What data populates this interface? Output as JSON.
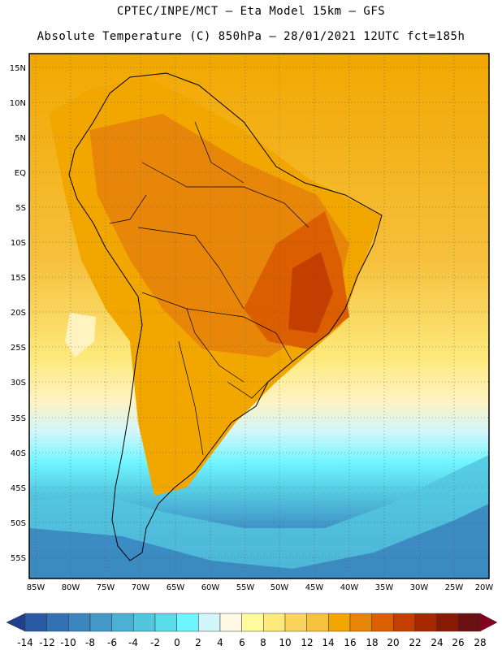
{
  "header": {
    "line1": "CPTEC/INPE/MCT –   Eta Model 15km – GFS",
    "line2": "Absolute Temperature (C) 850hPa – 28/01/2021 12UTC fct=185h"
  },
  "map": {
    "lat_labels": [
      "15N",
      "10N",
      "5N",
      "EQ",
      "5S",
      "10S",
      "15S",
      "20S",
      "25S",
      "30S",
      "35S",
      "40S",
      "45S",
      "50S",
      "55S"
    ],
    "lon_labels": [
      "85W",
      "80W",
      "75W",
      "70W",
      "65W",
      "60W",
      "55W",
      "50W",
      "45W",
      "40W",
      "35W",
      "30W",
      "25W",
      "20W"
    ],
    "lat_range": [
      15.5,
      -57.5
    ],
    "lon_range": [
      -86,
      -20
    ],
    "gridlines": "dotted"
  },
  "colorbar": {
    "levels": [
      "-14",
      "-12",
      "-10",
      "-8",
      "-6",
      "-4",
      "-2",
      "0",
      "2",
      "4",
      "6",
      "8",
      "10",
      "12",
      "14",
      "16",
      "18",
      "20",
      "22",
      "24",
      "26",
      "28"
    ],
    "colors": [
      "#1f3f8f",
      "#2a5aa5",
      "#3272b4",
      "#3a86bf",
      "#4599c8",
      "#4cb0d4",
      "#53c6df",
      "#5adceb",
      "#6ff5ff",
      "#d2f6fa",
      "#fff8e4",
      "#fffaa0",
      "#fde97c",
      "#fbd45e",
      "#f6c13e",
      "#f1a700",
      "#e8860a",
      "#db5e00",
      "#c43e00",
      "#a52800",
      "#861a05",
      "#6b1010",
      "#850020"
    ]
  }
}
